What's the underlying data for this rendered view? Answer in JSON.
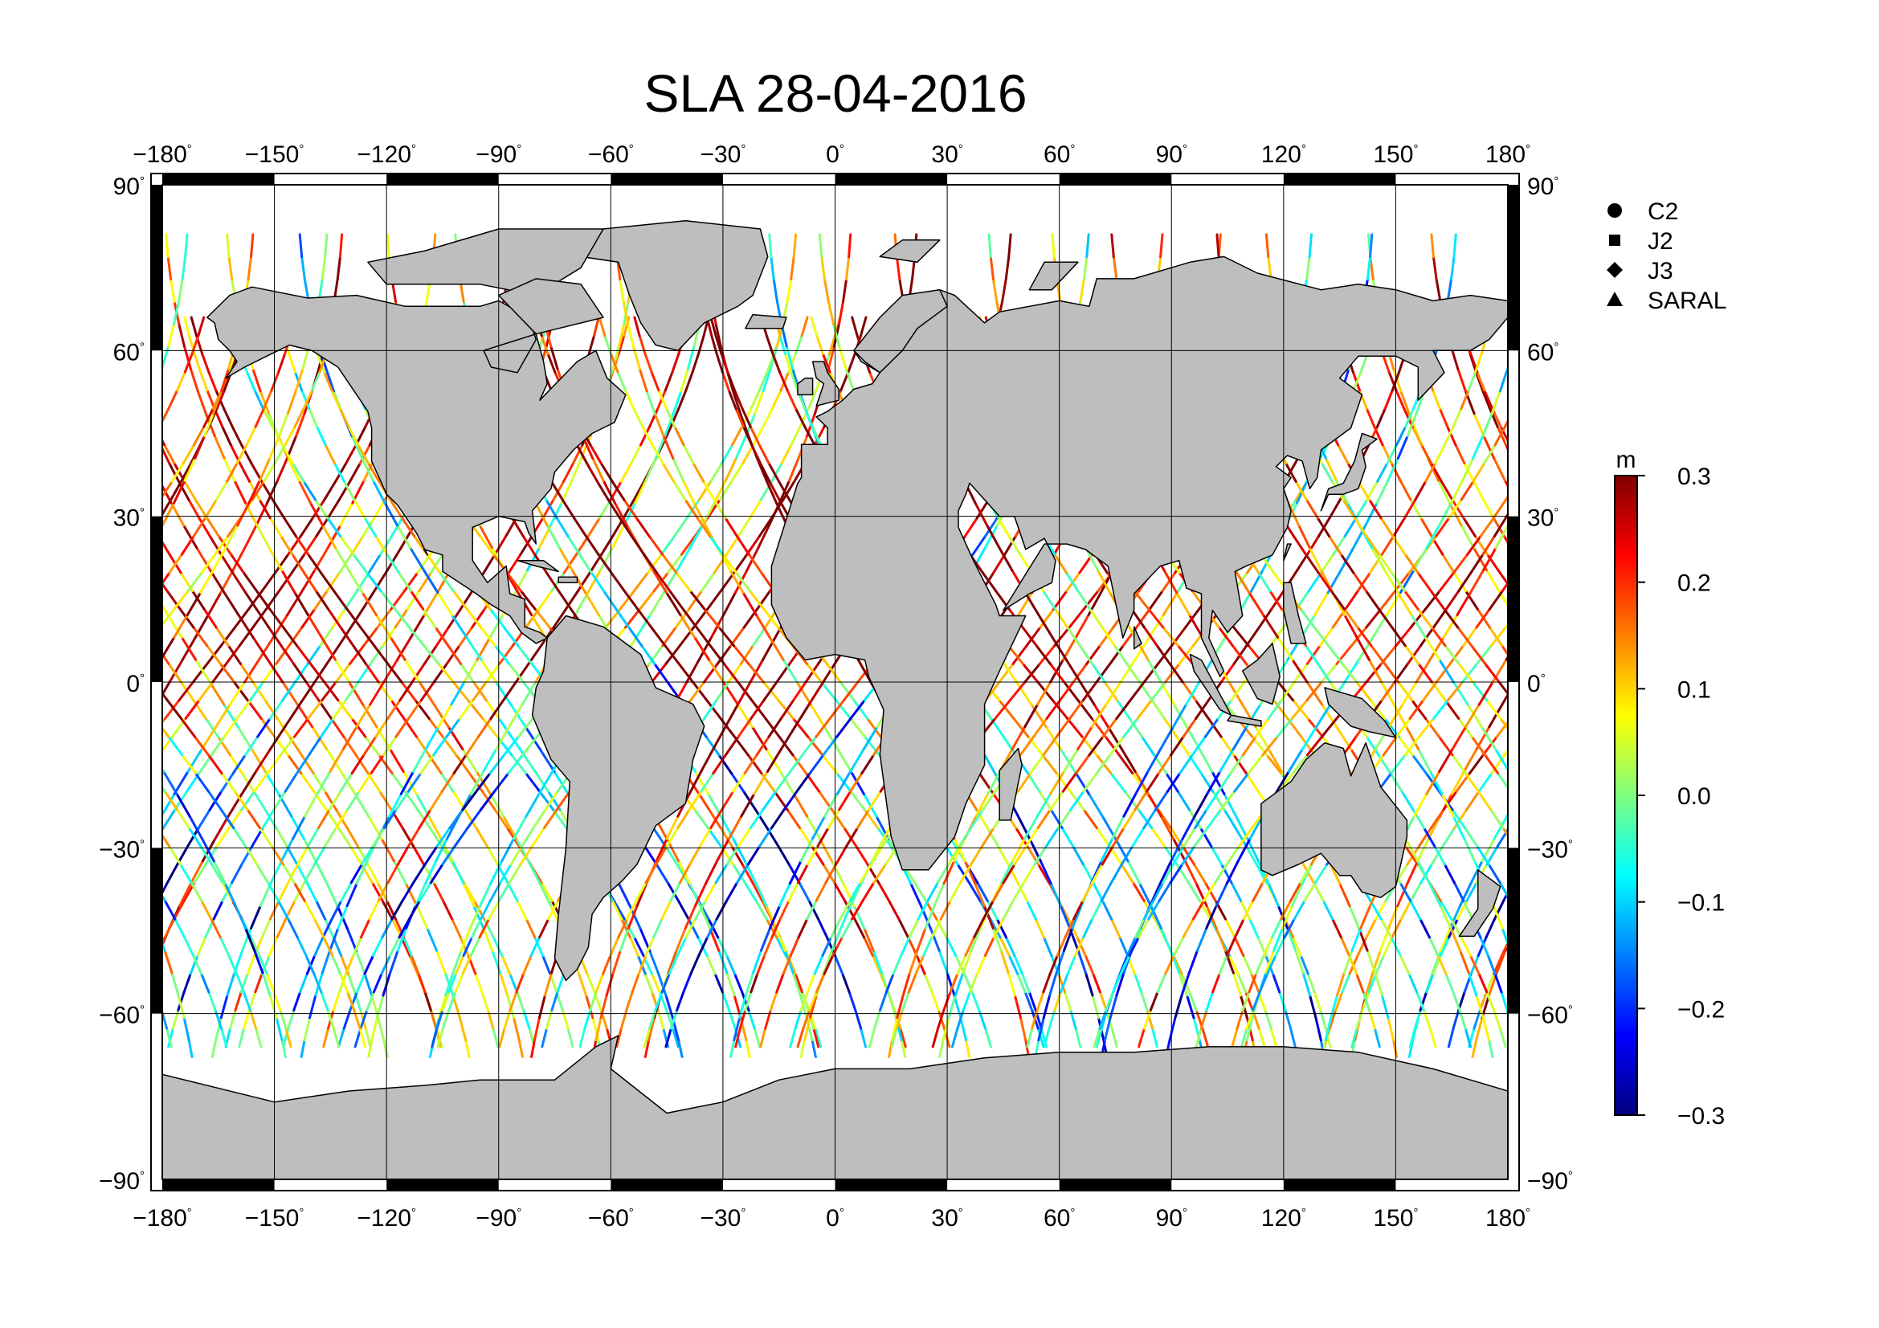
{
  "map": {
    "title": "SLA 28-04-2016",
    "projection": "equirectangular",
    "lon_range": [
      -180,
      180
    ],
    "lat_range": [
      -90,
      90
    ],
    "lon_ticks": [
      {
        "value": -180,
        "label": "−180"
      },
      {
        "value": -150,
        "label": "−150"
      },
      {
        "value": -120,
        "label": "−120"
      },
      {
        "value": -90,
        "label": "−90"
      },
      {
        "value": -60,
        "label": "−60"
      },
      {
        "value": -30,
        "label": "−30"
      },
      {
        "value": 0,
        "label": "0"
      },
      {
        "value": 30,
        "label": "30"
      },
      {
        "value": 60,
        "label": "60"
      },
      {
        "value": 90,
        "label": "90"
      },
      {
        "value": 120,
        "label": "120"
      },
      {
        "value": 150,
        "label": "150"
      },
      {
        "value": 180,
        "label": "180"
      }
    ],
    "lat_ticks": [
      {
        "value": 90,
        "label": "90"
      },
      {
        "value": 60,
        "label": "60"
      },
      {
        "value": 30,
        "label": "30"
      },
      {
        "value": 0,
        "label": "0"
      },
      {
        "value": -30,
        "label": "−30"
      },
      {
        "value": -60,
        "label": "−60"
      },
      {
        "value": -90,
        "label": "−90"
      }
    ],
    "degree_symbol": "°",
    "land_color": "#bebebe",
    "ocean_color": "#ffffff",
    "grid": true
  },
  "legend": {
    "placement": "top-right",
    "items": [
      {
        "label": "C2",
        "symbol": "circle"
      },
      {
        "label": "J2",
        "symbol": "square"
      },
      {
        "label": "J3",
        "symbol": "diamond"
      },
      {
        "label": "SARAL",
        "symbol": "triangle"
      }
    ]
  },
  "colorbar": {
    "unit": "m",
    "min": -0.3,
    "max": 0.3,
    "ticks": [
      {
        "value": 0.3,
        "label": "0.3"
      },
      {
        "value": 0.2,
        "label": "0.2"
      },
      {
        "value": 0.1,
        "label": "0.1"
      },
      {
        "value": 0.0,
        "label": "0.0"
      },
      {
        "value": -0.1,
        "label": "−0.1"
      },
      {
        "value": -0.2,
        "label": "−0.2"
      },
      {
        "value": -0.3,
        "label": "−0.3"
      }
    ],
    "colormap": [
      "#00007f",
      "#0000ff",
      "#007fff",
      "#00ffff",
      "#7fff7f",
      "#ffff00",
      "#ff7f00",
      "#ff0000",
      "#7f0000"
    ]
  }
}
